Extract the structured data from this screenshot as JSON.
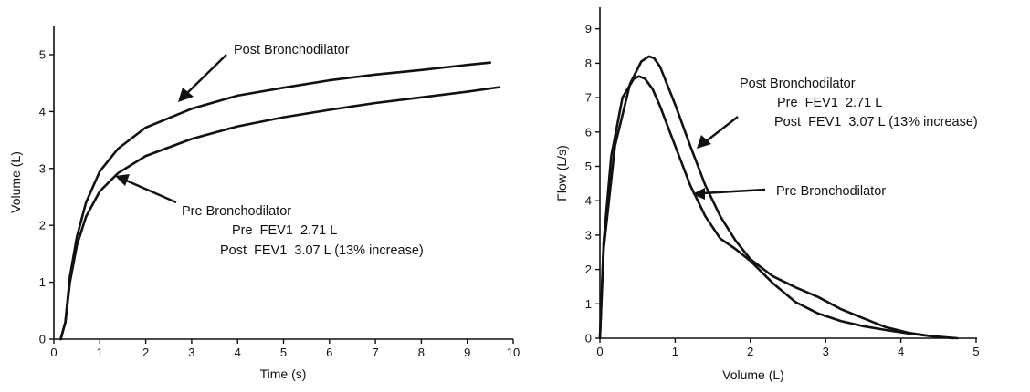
{
  "chart_data": [
    {
      "type": "line",
      "title": "",
      "xlabel": "Time (s)",
      "ylabel": "Volume (L)",
      "xlim": [
        0,
        10
      ],
      "ylim": [
        0,
        5.5
      ],
      "xticks": [
        "0",
        "1",
        "2",
        "3",
        "4",
        "5",
        "6",
        "7",
        "8",
        "9",
        "10"
      ],
      "yticks": [
        "0",
        "1",
        "2",
        "3",
        "4",
        "5"
      ],
      "grid": false,
      "series": [
        {
          "name": "Post Bronchodilator",
          "x": [
            0.15,
            0.25,
            0.35,
            0.5,
            0.7,
            1.0,
            1.4,
            2.0,
            3.0,
            4.0,
            5.0,
            6.0,
            7.0,
            8.0,
            9.0,
            9.5
          ],
          "y": [
            0.0,
            0.3,
            1.1,
            1.8,
            2.4,
            2.95,
            3.35,
            3.72,
            4.05,
            4.28,
            4.42,
            4.55,
            4.65,
            4.73,
            4.82,
            4.86
          ]
        },
        {
          "name": "Pre Bronchodilator",
          "x": [
            0.15,
            0.25,
            0.35,
            0.5,
            0.7,
            1.0,
            1.4,
            2.0,
            3.0,
            4.0,
            5.0,
            6.0,
            7.0,
            8.0,
            9.0,
            9.7
          ],
          "y": [
            0.0,
            0.3,
            1.0,
            1.65,
            2.15,
            2.6,
            2.92,
            3.22,
            3.52,
            3.74,
            3.9,
            4.03,
            4.15,
            4.25,
            4.35,
            4.43
          ]
        }
      ],
      "annotations": {
        "post_label": "Post Bronchodilator",
        "pre_label": "Pre Bronchodilator",
        "pre_fev1": "Pre  FEV1  2.71 L",
        "post_fev1": "Post  FEV1  3.07 L (13% increase)"
      }
    },
    {
      "type": "line",
      "title": "",
      "xlabel": "Volume (L)",
      "ylabel": "Flow (L/s)",
      "xlim": [
        0,
        5
      ],
      "ylim": [
        0,
        9.5
      ],
      "xticks": [
        "0",
        "1",
        "2",
        "3",
        "4",
        "5"
      ],
      "yticks": [
        "0",
        "1",
        "2",
        "3",
        "4",
        "5",
        "6",
        "7",
        "8",
        "9"
      ],
      "grid": false,
      "series": [
        {
          "name": "Post Bronchodilator",
          "x": [
            0.0,
            0.05,
            0.2,
            0.4,
            0.55,
            0.65,
            0.72,
            0.8,
            1.0,
            1.2,
            1.4,
            1.6,
            1.8,
            2.0,
            2.3,
            2.6,
            2.9,
            3.2,
            3.5,
            3.8,
            4.1,
            4.4,
            4.7
          ],
          "y": [
            0.0,
            2.6,
            5.6,
            7.4,
            8.05,
            8.2,
            8.15,
            7.9,
            6.8,
            5.6,
            4.45,
            3.55,
            2.85,
            2.3,
            1.8,
            1.48,
            1.2,
            0.85,
            0.58,
            0.32,
            0.16,
            0.06,
            0.0
          ]
        },
        {
          "name": "Pre Bronchodilator",
          "x": [
            0.0,
            0.05,
            0.15,
            0.3,
            0.45,
            0.52,
            0.6,
            0.7,
            0.8,
            1.0,
            1.2,
            1.4,
            1.6,
            1.8,
            2.0,
            2.3,
            2.6,
            2.9,
            3.2,
            3.5,
            3.8,
            4.1,
            4.4,
            4.75
          ],
          "y": [
            0.0,
            2.8,
            5.3,
            7.0,
            7.55,
            7.62,
            7.55,
            7.25,
            6.75,
            5.6,
            4.45,
            3.55,
            2.9,
            2.6,
            2.25,
            1.6,
            1.05,
            0.72,
            0.5,
            0.35,
            0.24,
            0.14,
            0.06,
            0.0
          ]
        }
      ],
      "annotations": {
        "post_label": "Post Bronchodilator",
        "pre_label": "Pre Bronchodilator",
        "pre_fev1": "Pre  FEV1  2.71 L",
        "post_fev1": "Post  FEV1  3.07 L (13% increase)"
      }
    }
  ]
}
